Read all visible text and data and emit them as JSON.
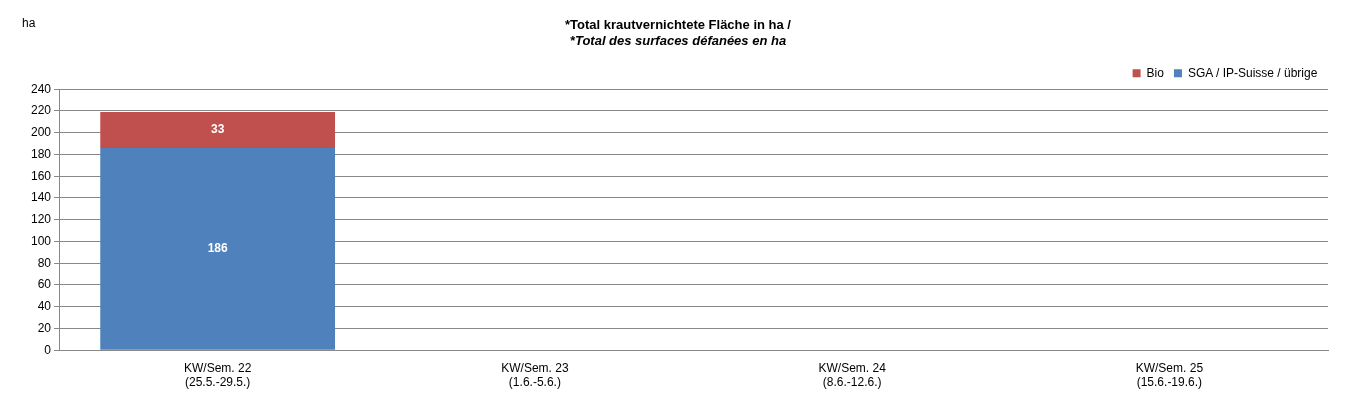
{
  "chart_data": {
    "type": "bar",
    "title": "*Total krautvernichtete Fläche in ha /",
    "subtitle": "*Total des surfaces défanées en ha",
    "ylabel": "ha",
    "categories": [
      "KW/Sem. 22\n(25.5.-29.5.)",
      "KW/Sem. 23\n(1.6.-5.6.)",
      "KW/Sem. 24\n(8.6.-12.6.)",
      "KW/Sem. 25\n(15.6.-19.6.)"
    ],
    "stacked": true,
    "series": [
      {
        "name": "SGA / IP-Suisse / übrige",
        "color": "#4f81bd",
        "values": [
          186,
          null,
          null,
          null
        ]
      },
      {
        "name": "Bio",
        "color": "#c0504d",
        "values": [
          33,
          null,
          null,
          null
        ]
      }
    ],
    "ylim": [
      0,
      240
    ],
    "yticks": [
      0,
      20,
      40,
      60,
      80,
      100,
      120,
      140,
      160,
      180,
      200,
      220,
      240
    ],
    "grid": "y",
    "legend": "top right",
    "data_labels": true
  }
}
